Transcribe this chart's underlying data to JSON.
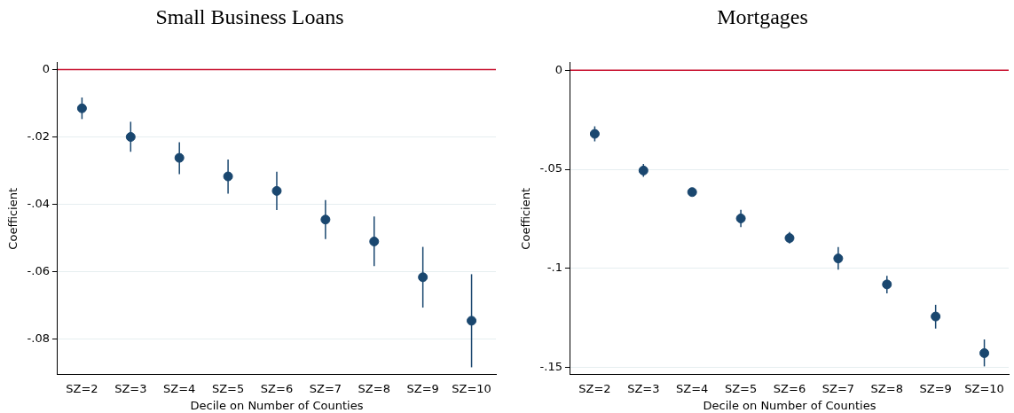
{
  "chart_data": [
    {
      "type": "scatter",
      "title": "Small Business Loans",
      "xlabel": "Decile on Number of Counties",
      "ylabel": "Coefficient",
      "categories": [
        "SZ=2",
        "SZ=3",
        "SZ=4",
        "SZ=5",
        "SZ=6",
        "SZ=7",
        "SZ=8",
        "SZ=9",
        "SZ=10"
      ],
      "series": [
        {
          "color": "#1a476f",
          "values": [
            -0.0115,
            -0.02,
            -0.0262,
            -0.0317,
            -0.036,
            -0.0445,
            -0.051,
            -0.0616,
            -0.0745
          ],
          "errors": [
            [
              -0.0147,
              -0.0083
            ],
            [
              -0.0244,
              -0.0155
            ],
            [
              -0.031,
              -0.0216
            ],
            [
              -0.0368,
              -0.0267
            ],
            [
              -0.0417,
              -0.0303
            ],
            [
              -0.0503,
              -0.0387
            ],
            [
              -0.0583,
              -0.0436
            ],
            [
              -0.0706,
              -0.0526
            ],
            [
              -0.0883,
              -0.0607
            ]
          ]
        }
      ],
      "ylim": [
        -0.0905,
        0.002
      ],
      "yticks": [
        {
          "value": -0.08,
          "label": "-.08"
        },
        {
          "value": -0.06,
          "label": "-.06"
        },
        {
          "value": -0.04,
          "label": "-.04"
        },
        {
          "value": -0.02,
          "label": "-.02"
        },
        0
      ],
      "ref_lines": [
        {
          "axis": "y",
          "value": 0,
          "color": "#c8102e"
        }
      ],
      "grid": "y",
      "legend": false,
      "marker": "circle"
    },
    {
      "type": "scatter",
      "title": "Mortgages",
      "xlabel": "Decile on Number of Counties",
      "ylabel": "Coefficient",
      "categories": [
        "SZ=2",
        "SZ=3",
        "SZ=4",
        "SZ=5",
        "SZ=6",
        "SZ=7",
        "SZ=8",
        "SZ=9",
        "SZ=10"
      ],
      "series": [
        {
          "color": "#1a476f",
          "values": [
            -0.0321,
            -0.0506,
            -0.0615,
            -0.0748,
            -0.0847,
            -0.095,
            -0.1081,
            -0.1243,
            -0.1428
          ],
          "errors": [
            [
              -0.0359,
              -0.0283
            ],
            [
              -0.0538,
              -0.0473
            ],
            [
              -0.063,
              -0.06
            ],
            [
              -0.0792,
              -0.0704
            ],
            [
              -0.0875,
              -0.0816
            ],
            [
              -0.1006,
              -0.0893
            ],
            [
              -0.1126,
              -0.1038
            ],
            [
              -0.1304,
              -0.1184
            ],
            [
              -0.1495,
              -0.1359
            ]
          ]
        }
      ],
      "ylim": [
        -0.1537,
        0.0038
      ],
      "yticks": [
        {
          "value": -0.15,
          "label": "-.15"
        },
        {
          "value": -0.1,
          "label": "-.1"
        },
        {
          "value": -0.05,
          "label": "-.05"
        },
        0
      ],
      "ref_lines": [
        {
          "axis": "y",
          "value": 0,
          "color": "#c8102e"
        }
      ],
      "grid": "y",
      "legend": false,
      "marker": "circle"
    }
  ]
}
